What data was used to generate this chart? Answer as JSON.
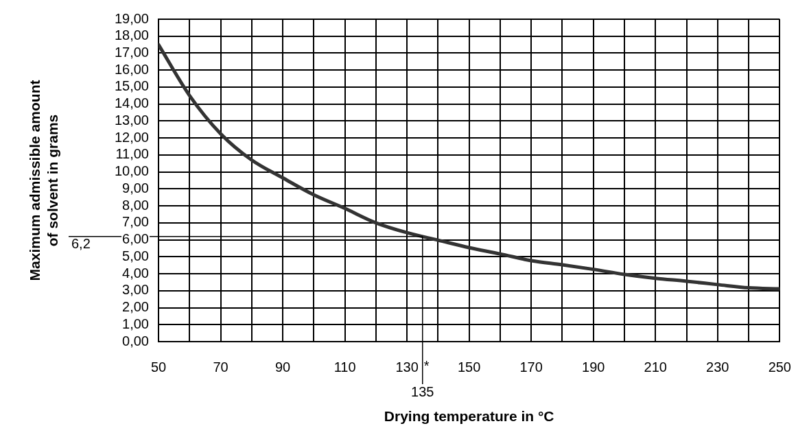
{
  "chart_data": {
    "type": "line",
    "xlabel": "Drying temperature in °C",
    "ylabel": "Maximum admissible amount\nof solvent in grams",
    "x": [
      50,
      60,
      70,
      80,
      90,
      100,
      110,
      120,
      130,
      140,
      150,
      160,
      170,
      180,
      190,
      200,
      210,
      220,
      230,
      240,
      250
    ],
    "series": [
      {
        "color": "#333333",
        "values": [
          17.5,
          14.5,
          12.25,
          10.7,
          9.65,
          8.65,
          7.85,
          7.0,
          6.42,
          5.98,
          5.54,
          5.17,
          4.77,
          4.53,
          4.26,
          3.96,
          3.73,
          3.56,
          3.36,
          3.17,
          3.11
        ]
      }
    ],
    "xlim": [
      50,
      250
    ],
    "xticks": [
      50,
      {
        "value": 60,
        "label": null
      },
      70,
      {
        "value": 80,
        "label": null
      },
      90,
      {
        "value": 100,
        "label": null
      },
      110,
      {
        "value": 120,
        "label": null
      },
      130,
      {
        "value": 140,
        "label": null
      },
      150,
      {
        "value": 160,
        "label": null
      },
      170,
      {
        "value": 180,
        "label": null
      },
      190,
      {
        "value": 200,
        "label": null
      },
      210,
      {
        "value": 220,
        "label": null
      },
      230,
      {
        "value": 240,
        "label": null
      },
      250
    ],
    "ylim": [
      0,
      19
    ],
    "yticks": [
      {
        "value": 0,
        "label": "0,00"
      },
      {
        "value": 1,
        "label": "1,00"
      },
      {
        "value": 2,
        "label": "2,00"
      },
      {
        "value": 3,
        "label": "3,00"
      },
      {
        "value": 4,
        "label": "4,00"
      },
      {
        "value": 5,
        "label": "5,00"
      },
      {
        "value": 6,
        "label": "6,00"
      },
      {
        "value": 7,
        "label": "7,00"
      },
      {
        "value": 8,
        "label": "8,00"
      },
      {
        "value": 9,
        "label": "9,00"
      },
      {
        "value": 10,
        "label": "10,00"
      },
      {
        "value": 11,
        "label": "11,00"
      },
      {
        "value": 12,
        "label": "12,00"
      },
      {
        "value": 13,
        "label": "13,00"
      },
      {
        "value": 14,
        "label": "14,00"
      },
      {
        "value": 15,
        "label": "15,00"
      },
      {
        "value": 16,
        "label": "16,00"
      },
      {
        "value": 17,
        "label": "17,00"
      },
      {
        "value": 18,
        "label": "18,00"
      },
      {
        "value": 19,
        "label": "19,00"
      }
    ],
    "ref_lines": [
      {
        "axis": "y",
        "value": 6.2,
        "label": "6,2"
      },
      {
        "axis": "x",
        "value": 135,
        "label": "135"
      }
    ],
    "annotations": [
      "*"
    ],
    "grid": true,
    "legend": false,
    "marker": "none",
    "line_style": "solid"
  }
}
